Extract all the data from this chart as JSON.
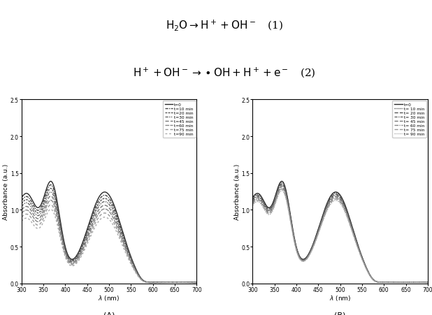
{
  "xlabel_A": "$\\lambda$ (nm)",
  "xlabel_B": "$\\lambda$ (nm)",
  "ylabel": "Absorbance (a.u.)",
  "xlim": [
    300,
    700
  ],
  "ylim": [
    0.0,
    2.5
  ],
  "yticks": [
    0.0,
    0.5,
    1.0,
    1.5,
    2.0,
    2.5
  ],
  "xticks": [
    300,
    350,
    400,
    450,
    500,
    550,
    600,
    650,
    700
  ],
  "legend_labels_A": [
    "t=0",
    "t=10 min",
    "t=20 min",
    "t=30 min",
    "t=45 min",
    "t=60 min",
    "t=75 min",
    "t=90 min"
  ],
  "legend_labels_B": [
    "t=0",
    "t= 10 min",
    "t= 20 min",
    "t= 30 min",
    "t= 45 min",
    "t= 60 min",
    "t= 75 min",
    "t= 90 min"
  ],
  "label_A": "(A)",
  "label_B": "(B)",
  "scales_A": [
    1.0,
    0.965,
    0.93,
    0.895,
    0.855,
    0.815,
    0.77,
    0.725
  ],
  "scales_B": [
    1.0,
    0.988,
    0.976,
    0.964,
    0.95,
    0.936,
    0.922,
    0.908
  ]
}
